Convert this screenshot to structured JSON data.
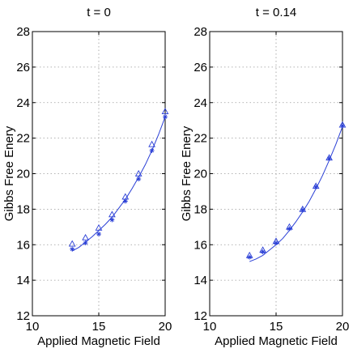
{
  "chart_data": [
    {
      "type": "line",
      "title": "t = 0",
      "xlabel": "Applied Magnetic Field",
      "ylabel": "Gibbs Free Enery",
      "xlim": [
        10,
        20
      ],
      "ylim": [
        12,
        28
      ],
      "xticks": [
        10,
        15,
        20
      ],
      "yticks": [
        12,
        14,
        16,
        18,
        20,
        22,
        24,
        26,
        28
      ],
      "grid": true,
      "series": [
        {
          "marker": "line",
          "x": [
            13,
            13.5,
            14,
            14.5,
            15,
            15.5,
            16,
            16.5,
            17,
            17.5,
            18,
            18.5,
            19,
            19.5,
            20
          ],
          "y": [
            15.65,
            15.85,
            16.15,
            16.45,
            16.8,
            17.15,
            17.55,
            18.05,
            18.55,
            19.15,
            19.8,
            20.5,
            21.3,
            22.2,
            23.2
          ]
        },
        {
          "marker": "triangle",
          "x": [
            13,
            14,
            15,
            16,
            17,
            18,
            19,
            20
          ],
          "y": [
            16.05,
            16.4,
            16.95,
            17.7,
            18.7,
            20.0,
            21.65,
            23.5
          ]
        },
        {
          "marker": "asterisk",
          "x": [
            13,
            14,
            15,
            16,
            17,
            18,
            19,
            20
          ],
          "y": [
            15.75,
            16.1,
            16.6,
            17.4,
            18.45,
            19.7,
            21.3,
            23.2
          ]
        }
      ]
    },
    {
      "type": "line",
      "title": "t = 0.14",
      "xlabel": "Applied Magnetic Field",
      "ylabel": "Gibbs Free Enery",
      "xlim": [
        10,
        20
      ],
      "ylim": [
        12,
        28
      ],
      "xticks": [
        10,
        15,
        20
      ],
      "yticks": [
        12,
        14,
        16,
        18,
        20,
        22,
        24,
        26,
        28
      ],
      "grid": true,
      "series": [
        {
          "marker": "line",
          "x": [
            13,
            13.5,
            14,
            14.5,
            15,
            15.5,
            16,
            16.5,
            17,
            17.5,
            18,
            18.5,
            19,
            19.5,
            20
          ],
          "y": [
            15.05,
            15.2,
            15.4,
            15.7,
            16.0,
            16.35,
            16.8,
            17.3,
            17.85,
            18.45,
            19.15,
            19.9,
            20.75,
            21.65,
            22.65
          ]
        },
        {
          "marker": "triangle",
          "x": [
            13,
            14,
            15,
            16,
            17,
            18,
            19,
            20
          ],
          "y": [
            15.4,
            15.7,
            16.2,
            17.0,
            18.0,
            19.3,
            20.9,
            22.75
          ]
        },
        {
          "marker": "asterisk",
          "x": [
            13,
            14,
            15,
            16,
            17,
            18,
            19,
            20
          ],
          "y": [
            15.3,
            15.6,
            16.1,
            16.9,
            17.95,
            19.25,
            20.85,
            22.7
          ]
        }
      ]
    }
  ]
}
